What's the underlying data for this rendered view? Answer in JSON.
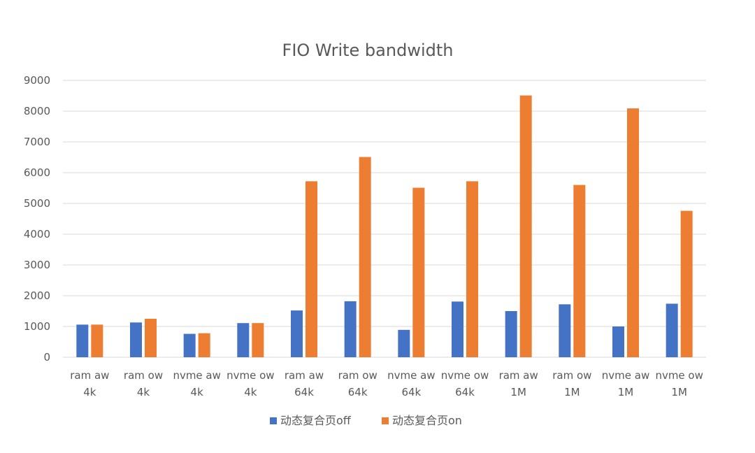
{
  "chart_data": {
    "type": "bar",
    "title": "FIO Write bandwidth",
    "categories": [
      [
        "ram aw",
        "4k"
      ],
      [
        "ram ow",
        "4k"
      ],
      [
        "nvme aw",
        "4k"
      ],
      [
        "nvme ow",
        "4k"
      ],
      [
        "ram aw",
        "64k"
      ],
      [
        "ram ow",
        "64k"
      ],
      [
        "nvme aw",
        "64k"
      ],
      [
        "nvme ow",
        "64k"
      ],
      [
        "ram aw",
        "1M"
      ],
      [
        "ram ow",
        "1M"
      ],
      [
        "nvme aw",
        "1M"
      ],
      [
        "nvme ow",
        "1M"
      ]
    ],
    "series": [
      {
        "name": "动态复合页off",
        "color": "#4472C4",
        "values": [
          1060,
          1130,
          760,
          1110,
          1520,
          1820,
          890,
          1810,
          1500,
          1720,
          1000,
          1740
        ]
      },
      {
        "name": "动态复合页on",
        "color": "#ED7D31",
        "values": [
          1060,
          1250,
          780,
          1110,
          5720,
          6510,
          5510,
          5720,
          8510,
          5600,
          8090,
          4760
        ]
      }
    ],
    "ylim": [
      0,
      9000
    ],
    "yticks": [
      0,
      1000,
      2000,
      3000,
      4000,
      5000,
      6000,
      7000,
      8000,
      9000
    ],
    "grid": true,
    "legend_position": "bottom-center",
    "xlabel": "",
    "ylabel": ""
  }
}
